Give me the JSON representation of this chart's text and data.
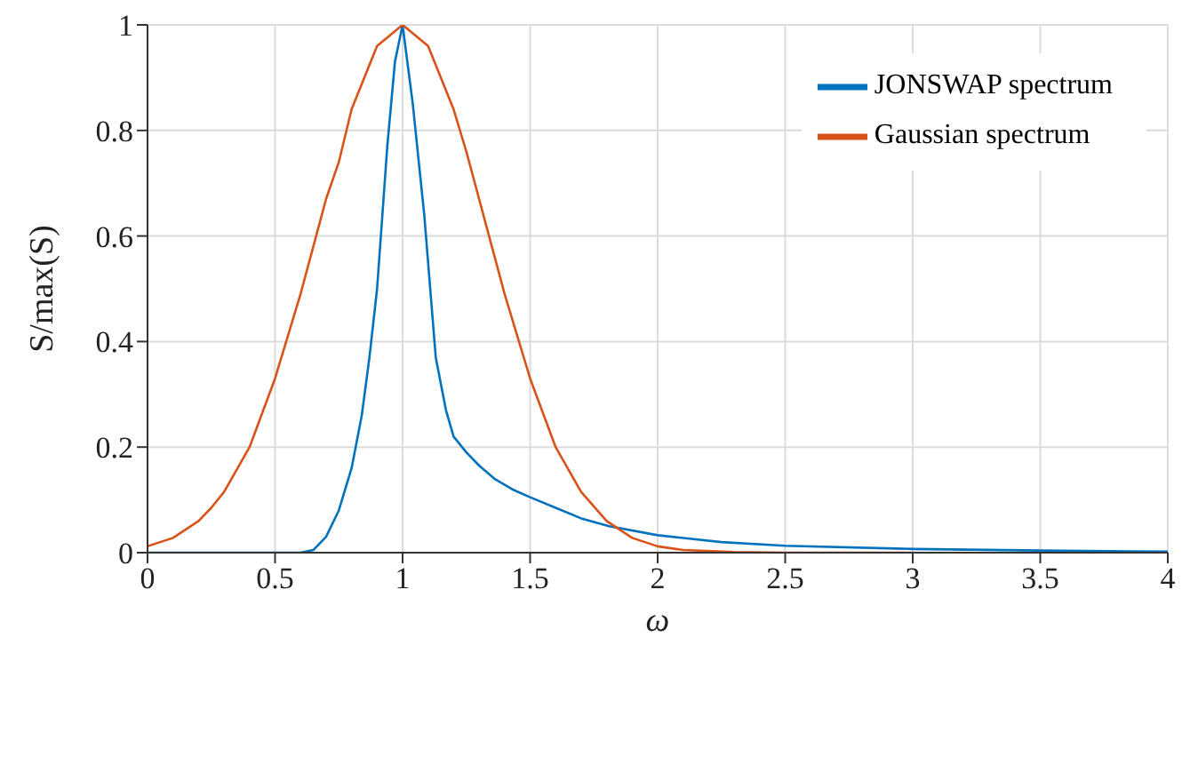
{
  "chart_data": {
    "type": "line",
    "xlabel": "ω",
    "ylabel": "S/max(S)",
    "xlim": [
      0,
      4
    ],
    "ylim": [
      0,
      1
    ],
    "xticks": [
      0,
      0.5,
      1,
      1.5,
      2,
      2.5,
      3,
      3.5,
      4
    ],
    "yticks": [
      0,
      0.2,
      0.4,
      0.6,
      0.8,
      1
    ],
    "grid": true,
    "legend": "top right",
    "marker": "none",
    "line_style": "solid",
    "series": [
      {
        "name": "JONSWAP spectrum",
        "color": "#0072bd",
        "x": [
          0,
          0.3,
          0.6,
          0.65,
          0.7,
          0.75,
          0.8,
          0.84,
          0.87,
          0.9,
          0.94,
          0.97,
          1,
          1.04,
          1.085,
          1.13,
          1.17,
          1.2,
          1.25,
          1.3,
          1.36,
          1.43,
          1.5,
          1.6,
          1.7,
          1.81,
          2,
          2.25,
          2.5,
          3,
          3.5,
          4
        ],
        "values": [
          0,
          0,
          0,
          0.005,
          0.03,
          0.08,
          0.16,
          0.26,
          0.37,
          0.5,
          0.77,
          0.93,
          1,
          0.85,
          0.64,
          0.37,
          0.27,
          0.22,
          0.19,
          0.165,
          0.14,
          0.12,
          0.105,
          0.085,
          0.065,
          0.05,
          0.033,
          0.02,
          0.013,
          0.007,
          0.004,
          0.002
        ]
      },
      {
        "name": "Gaussian spectrum",
        "color": "#d95319",
        "x": [
          0,
          0.1,
          0.2,
          0.25,
          0.3,
          0.4,
          0.5,
          0.6,
          0.7,
          0.75,
          0.8,
          0.9,
          1,
          1.1,
          1.2,
          1.25,
          1.3,
          1.4,
          1.5,
          1.6,
          1.7,
          1.8,
          1.9,
          2,
          2.1,
          2.3,
          2.5,
          3
        ],
        "values": [
          0.012,
          0.028,
          0.06,
          0.085,
          0.115,
          0.2,
          0.33,
          0.49,
          0.67,
          0.74,
          0.84,
          0.96,
          1,
          0.96,
          0.84,
          0.76,
          0.67,
          0.49,
          0.33,
          0.2,
          0.115,
          0.06,
          0.028,
          0.012,
          0.005,
          0.001,
          0,
          0
        ]
      }
    ]
  }
}
